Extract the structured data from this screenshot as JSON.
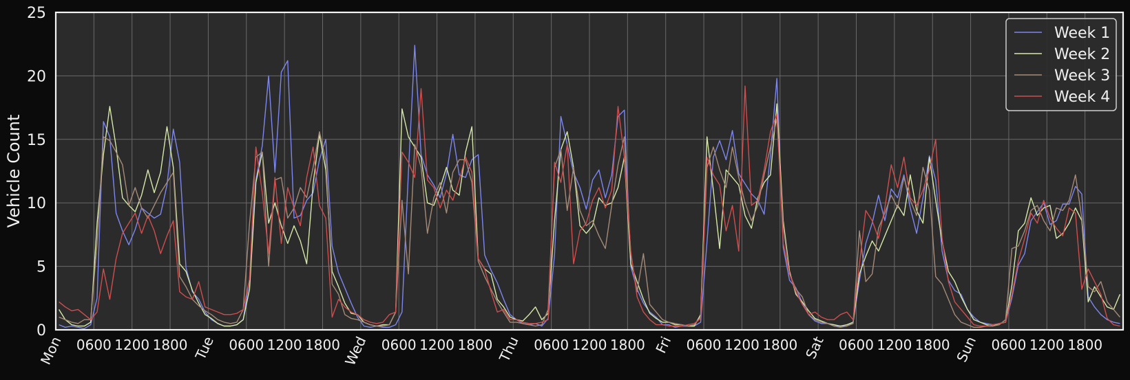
{
  "chart_data": {
    "type": "line",
    "ylabel": "Vehicle Count",
    "ylim": [
      0,
      25
    ],
    "yticks": [
      0,
      5,
      10,
      15,
      20,
      25
    ],
    "xlim": [
      0,
      168
    ],
    "day_labels": [
      "Mon",
      "Tue",
      "Wed",
      "Thu",
      "Fri",
      "Sat",
      "Sun"
    ],
    "hour_labels": [
      "0600",
      "1200",
      "1800"
    ],
    "grid": true,
    "legend_position": "top-right",
    "colors": {
      "figure_bg": "#0b0b0b",
      "axes_bg": "#2b2b2b",
      "grid": "#6a6a6a",
      "text": "#f0f0f0"
    },
    "series": [
      {
        "name": "Week 1",
        "color": "#7d87ee",
        "values": [
          0.4,
          0.2,
          0.3,
          0.2,
          0.1,
          0.4,
          2.5,
          16.4,
          15.2,
          9.2,
          7.8,
          6.7,
          7.9,
          9.6,
          9.2,
          8.8,
          9.1,
          11.4,
          15.8,
          13.2,
          4.9,
          3.0,
          2.4,
          1.4,
          0.8,
          0.5,
          0.3,
          0.3,
          0.4,
          0.8,
          4.0,
          11.8,
          14.5,
          20.0,
          12.4,
          20.3,
          21.2,
          8.8,
          9.0,
          10.2,
          10.8,
          13.4,
          15.0,
          6.6,
          4.5,
          3.3,
          2.1,
          1.0,
          0.3,
          0.2,
          0.3,
          0.2,
          0.2,
          0.4,
          1.4,
          12.4,
          22.4,
          13.8,
          12.2,
          11.4,
          10.4,
          12.3,
          15.4,
          12.2,
          12.0,
          13.4,
          13.8,
          5.9,
          4.7,
          3.7,
          2.4,
          1.2,
          0.8,
          0.5,
          0.4,
          0.5,
          0.3,
          0.9,
          5.9,
          16.8,
          14.6,
          12.4,
          11.2,
          9.5,
          11.8,
          12.6,
          10.4,
          12.2,
          16.8,
          17.3,
          5.0,
          3.2,
          2.1,
          1.4,
          1.0,
          0.4,
          0.4,
          0.2,
          0.3,
          0.3,
          0.3,
          0.6,
          6.9,
          13.6,
          14.9,
          13.4,
          15.7,
          12.3,
          11.5,
          10.7,
          10.2,
          9.1,
          13.8,
          19.8,
          6.5,
          3.9,
          3.3,
          2.1,
          1.2,
          0.7,
          0.5,
          0.5,
          0.3,
          0.3,
          0.3,
          0.6,
          3.9,
          6.8,
          8.4,
          10.6,
          8.6,
          11.1,
          10.4,
          12.2,
          9.6,
          7.6,
          10.4,
          13.7,
          11.8,
          6.2,
          3.9,
          3.1,
          2.8,
          1.6,
          1.0,
          0.6,
          0.5,
          0.4,
          0.5,
          0.6,
          2.5,
          5.1,
          6.0,
          8.6,
          9.3,
          10.0,
          8.3,
          8.6,
          9.9,
          9.9,
          11.3,
          10.7,
          2.6,
          1.8,
          1.2,
          0.8,
          0.6,
          0.5
        ]
      },
      {
        "name": "Week 2",
        "color": "#d6e9a8",
        "values": [
          1.6,
          0.8,
          0.4,
          0.3,
          0.3,
          0.6,
          8.4,
          13.8,
          17.6,
          14.4,
          10.4,
          9.8,
          9.3,
          10.6,
          12.6,
          10.8,
          12.4,
          16.0,
          12.8,
          5.2,
          4.6,
          3.1,
          2.1,
          1.2,
          0.9,
          0.5,
          0.3,
          0.3,
          0.4,
          0.8,
          3.2,
          11.6,
          14.0,
          8.4,
          10.0,
          8.2,
          6.8,
          8.2,
          7.0,
          5.2,
          11.5,
          15.4,
          12.6,
          4.6,
          3.4,
          2.1,
          1.3,
          1.2,
          0.6,
          0.4,
          0.3,
          0.4,
          0.4,
          1.4,
          17.4,
          15.2,
          14.4,
          13.6,
          10.0,
          9.8,
          11.2,
          12.8,
          11.0,
          10.6,
          14.0,
          16.0,
          5.6,
          4.8,
          4.4,
          2.4,
          1.8,
          1.0,
          0.8,
          0.7,
          1.2,
          1.8,
          0.8,
          1.3,
          8.6,
          14.2,
          15.6,
          12.8,
          8.2,
          7.6,
          8.2,
          10.4,
          9.8,
          10.0,
          11.2,
          13.6,
          5.2,
          3.8,
          2.4,
          1.3,
          0.9,
          0.6,
          0.6,
          0.4,
          0.4,
          0.3,
          0.3,
          1.2,
          15.2,
          11.0,
          6.4,
          12.6,
          12.0,
          11.4,
          9.0,
          8.0,
          10.4,
          11.6,
          12.2,
          17.8,
          8.6,
          4.6,
          2.8,
          2.2,
          1.5,
          0.9,
          0.7,
          0.5,
          0.4,
          0.3,
          0.4,
          0.6,
          4.4,
          5.8,
          7.0,
          6.2,
          7.4,
          8.6,
          9.8,
          9.0,
          12.2,
          9.4,
          8.4,
          13.6,
          10.2,
          7.0,
          4.6,
          3.8,
          2.6,
          1.6,
          0.8,
          0.6,
          0.4,
          0.3,
          0.5,
          0.6,
          3.5,
          7.8,
          8.4,
          10.4,
          9.0,
          9.6,
          9.8,
          7.2,
          7.6,
          8.4,
          9.6,
          8.6,
          2.2,
          3.4,
          2.6,
          1.8,
          1.6,
          2.8
        ]
      },
      {
        "name": "Week 3",
        "color": "#a68b78",
        "values": [
          1.0,
          0.8,
          0.6,
          0.5,
          0.8,
          0.8,
          6.8,
          15.2,
          14.9,
          14.0,
          13.0,
          9.8,
          11.2,
          9.6,
          8.8,
          9.8,
          10.8,
          11.6,
          12.4,
          4.2,
          3.4,
          2.4,
          1.9,
          1.5,
          1.2,
          0.8,
          0.6,
          0.5,
          0.6,
          1.6,
          8.4,
          13.6,
          14.0,
          5.0,
          11.8,
          12.0,
          8.8,
          9.6,
          11.2,
          10.4,
          12.8,
          15.6,
          13.4,
          3.6,
          2.8,
          1.2,
          0.9,
          0.8,
          0.6,
          0.4,
          0.3,
          0.3,
          0.4,
          1.4,
          10.2,
          4.4,
          14.6,
          12.8,
          7.6,
          10.4,
          11.6,
          9.2,
          12.4,
          13.4,
          13.4,
          11.6,
          5.4,
          4.2,
          3.2,
          2.2,
          1.4,
          0.6,
          0.6,
          0.5,
          0.4,
          0.3,
          0.4,
          1.6,
          12.8,
          14.2,
          9.4,
          12.8,
          9.4,
          8.2,
          8.6,
          7.4,
          6.4,
          9.8,
          13.0,
          15.2,
          6.0,
          3.0,
          6.0,
          2.0,
          1.4,
          0.8,
          0.6,
          0.5,
          0.4,
          0.3,
          0.4,
          1.0,
          12.8,
          14.4,
          12.6,
          11.2,
          14.4,
          12.0,
          10.0,
          8.6,
          9.8,
          12.2,
          14.4,
          16.6,
          8.2,
          4.4,
          3.2,
          2.6,
          1.2,
          0.8,
          0.6,
          0.5,
          0.3,
          0.2,
          0.3,
          0.5,
          7.8,
          3.8,
          4.4,
          8.0,
          9.2,
          10.6,
          9.6,
          12.0,
          10.2,
          9.0,
          12.8,
          11.0,
          4.2,
          3.6,
          2.4,
          1.2,
          0.6,
          0.4,
          0.2,
          0.2,
          0.3,
          0.3,
          0.4,
          0.8,
          6.4,
          6.6,
          7.8,
          9.4,
          9.8,
          8.6,
          7.8,
          9.6,
          9.4,
          10.2,
          12.2,
          8.8,
          3.4,
          3.0,
          3.8,
          2.2,
          1.6,
          1.0
        ]
      },
      {
        "name": "Week 4",
        "color": "#cf4e4e",
        "values": [
          2.2,
          1.8,
          1.5,
          1.6,
          1.2,
          0.8,
          1.4,
          4.8,
          2.4,
          5.6,
          7.6,
          8.4,
          9.2,
          7.6,
          9.0,
          7.8,
          6.0,
          7.4,
          8.6,
          3.0,
          2.6,
          2.4,
          3.8,
          1.8,
          1.6,
          1.4,
          1.2,
          1.2,
          1.3,
          1.6,
          4.0,
          14.4,
          10.8,
          6.0,
          12.0,
          6.8,
          11.2,
          9.6,
          8.2,
          12.0,
          14.4,
          9.8,
          8.8,
          1.0,
          2.4,
          1.8,
          1.4,
          1.2,
          0.8,
          0.6,
          0.5,
          0.6,
          1.2,
          1.4,
          14.0,
          13.2,
          12.0,
          19.0,
          11.8,
          11.2,
          9.6,
          11.0,
          10.2,
          11.8,
          13.6,
          12.4,
          5.6,
          4.8,
          3.0,
          1.4,
          1.6,
          0.8,
          0.8,
          0.6,
          0.5,
          0.5,
          0.6,
          0.8,
          13.2,
          11.6,
          14.6,
          5.2,
          7.8,
          8.4,
          10.2,
          11.2,
          9.6,
          11.0,
          17.6,
          13.6,
          6.2,
          2.6,
          1.4,
          0.8,
          0.4,
          0.4,
          0.3,
          0.3,
          0.3,
          0.4,
          0.5,
          0.9,
          13.6,
          12.2,
          11.4,
          7.8,
          9.8,
          6.2,
          19.2,
          9.8,
          10.2,
          12.6,
          15.6,
          17.0,
          6.8,
          4.4,
          3.0,
          2.0,
          1.2,
          1.4,
          1.0,
          0.8,
          0.8,
          1.2,
          1.4,
          0.8,
          5.2,
          9.4,
          8.6,
          7.2,
          9.6,
          13.0,
          11.2,
          13.6,
          10.4,
          9.8,
          11.0,
          12.6,
          15.0,
          7.2,
          3.8,
          2.2,
          1.6,
          1.0,
          0.4,
          0.3,
          0.3,
          0.4,
          0.5,
          0.6,
          2.8,
          5.4,
          7.2,
          9.2,
          8.4,
          10.2,
          8.8,
          8.0,
          7.4,
          9.6,
          9.2,
          3.2,
          4.8,
          3.8,
          2.8,
          0.9,
          0.4,
          0.3
        ]
      }
    ]
  }
}
